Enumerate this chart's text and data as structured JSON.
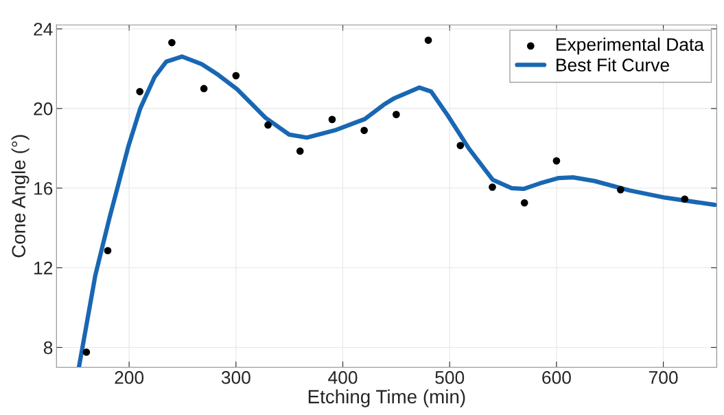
{
  "chart_data": {
    "type": "scatter",
    "xlabel": "Etching Time (min)",
    "ylabel": "Cone Angle (°)",
    "xlim": [
      132,
      750
    ],
    "xticks": [
      200,
      300,
      400,
      500,
      600,
      700
    ],
    "ylim": [
      7,
      24.2
    ],
    "yticks": [
      8,
      12,
      16,
      20,
      24
    ],
    "grid": true,
    "legend": "top right",
    "series": [
      {
        "name": "Experimental Data",
        "marker": "circle",
        "color": "#000000",
        "x": [
          160,
          180,
          210,
          240,
          270,
          300,
          330,
          360,
          390,
          420,
          450,
          480,
          510,
          540,
          570,
          600,
          660,
          720
        ],
        "values": [
          7.76,
          12.86,
          20.85,
          23.31,
          21.0,
          21.65,
          19.17,
          17.86,
          19.45,
          18.9,
          19.7,
          23.43,
          18.14,
          16.05,
          15.26,
          17.37,
          15.92,
          15.45
        ]
      },
      {
        "name": "Best Fit Curve",
        "type": "line",
        "marker": "none",
        "line_style": "solid",
        "color": "#1967b3",
        "x": [
          153,
          168.4,
          181.6,
          199.3,
          210.4,
          223.7,
          234.7,
          249.6,
          268,
          283.4,
          301,
          327.7,
          349.8,
          366.4,
          394,
          420.6,
          438.3,
          447.3,
          471.7,
          482.7,
          498.2,
          518.1,
          540.3,
          558,
          569,
          584.5,
          602.2,
          615.5,
          635.4,
          668.6,
          701.8,
          748.2
        ],
        "values": [
          7.0,
          11.63,
          14.5,
          18.1,
          20.0,
          21.57,
          22.35,
          22.61,
          22.23,
          21.69,
          20.97,
          19.53,
          18.69,
          18.54,
          18.93,
          19.47,
          20.19,
          20.49,
          21.05,
          20.85,
          19.65,
          17.98,
          16.42,
          16.0,
          15.96,
          16.24,
          16.51,
          16.54,
          16.36,
          15.88,
          15.52,
          15.16
        ]
      }
    ]
  }
}
